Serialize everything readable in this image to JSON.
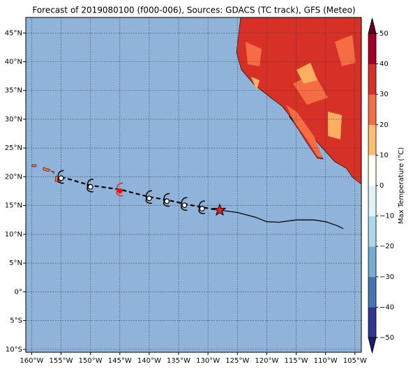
{
  "map": {
    "title": "Forecast of 2019080100 (f000-006), Sources: GDACS (TC track), GFS (Meteo)",
    "xlim": [
      -161,
      -103.9
    ],
    "ylim": [
      -10.5,
      47.7
    ],
    "xticks": [
      {
        "value": -160,
        "label": "160°W"
      },
      {
        "value": -155,
        "label": "155°W"
      },
      {
        "value": -150,
        "label": "150°W"
      },
      {
        "value": -145,
        "label": "145°W"
      },
      {
        "value": -140,
        "label": "140°W"
      },
      {
        "value": -135,
        "label": "135°W"
      },
      {
        "value": -130,
        "label": "130°W"
      },
      {
        "value": -125,
        "label": "125°W"
      },
      {
        "value": -120,
        "label": "120°W"
      },
      {
        "value": -115,
        "label": "115°W"
      },
      {
        "value": -110,
        "label": "110°W"
      },
      {
        "value": -105,
        "label": "105°W"
      }
    ],
    "yticks": [
      {
        "value": 45,
        "label": "45°N"
      },
      {
        "value": 40,
        "label": "40°N"
      },
      {
        "value": 35,
        "label": "35°N"
      },
      {
        "value": 30,
        "label": "30°N"
      },
      {
        "value": 25,
        "label": "25°N"
      },
      {
        "value": 20,
        "label": "20°N"
      },
      {
        "value": 15,
        "label": "15°N"
      },
      {
        "value": 10,
        "label": "10°N"
      },
      {
        "value": 5,
        "label": "5°N"
      },
      {
        "value": 0,
        "label": "0°"
      },
      {
        "value": -5,
        "label": "5°S"
      },
      {
        "value": -10,
        "label": "10°S"
      }
    ],
    "grid": true,
    "track": {
      "forecast": {
        "lon": [
          -155,
          -150,
          -145,
          -140,
          -137,
          -134,
          -131
        ],
        "lat": [
          20,
          18.5,
          17.8,
          16.5,
          16,
          15.3,
          14.7
        ],
        "colors": [
          "white",
          "white",
          "red",
          "white",
          "white",
          "white",
          "white"
        ]
      },
      "current": {
        "lon": -128,
        "lat": 14.2,
        "color": "#e52521"
      },
      "past": {
        "lon": [
          -128,
          -125,
          -122,
          -120,
          -118,
          -115,
          -112,
          -110,
          -108,
          -107
        ],
        "lat": [
          14.2,
          13.8,
          13,
          12.2,
          12.1,
          12.5,
          12.5,
          12.2,
          11.5,
          11.0
        ]
      }
    },
    "colorbar": {
      "label": "Max Temperature (°C)",
      "lim": [
        -50,
        50
      ],
      "ticks": [
        50,
        40,
        30,
        20,
        10,
        0,
        {
          "value": -10,
          "label": "−10"
        },
        {
          "value": -20,
          "label": "−20"
        },
        {
          "value": -30,
          "label": "−30"
        },
        {
          "value": -40,
          "label": "−40"
        },
        {
          "value": -50,
          "label": "−50"
        }
      ],
      "colors": [
        "#313695",
        "#4575b4",
        "#74add1",
        "#abd9e9",
        "#e0f3f8",
        "#fffff2",
        "#fdbf71",
        "#f46d43",
        "#d73027",
        "#a50026"
      ],
      "extend_colors": [
        "#1a1a6e",
        "#67001f"
      ]
    }
  }
}
